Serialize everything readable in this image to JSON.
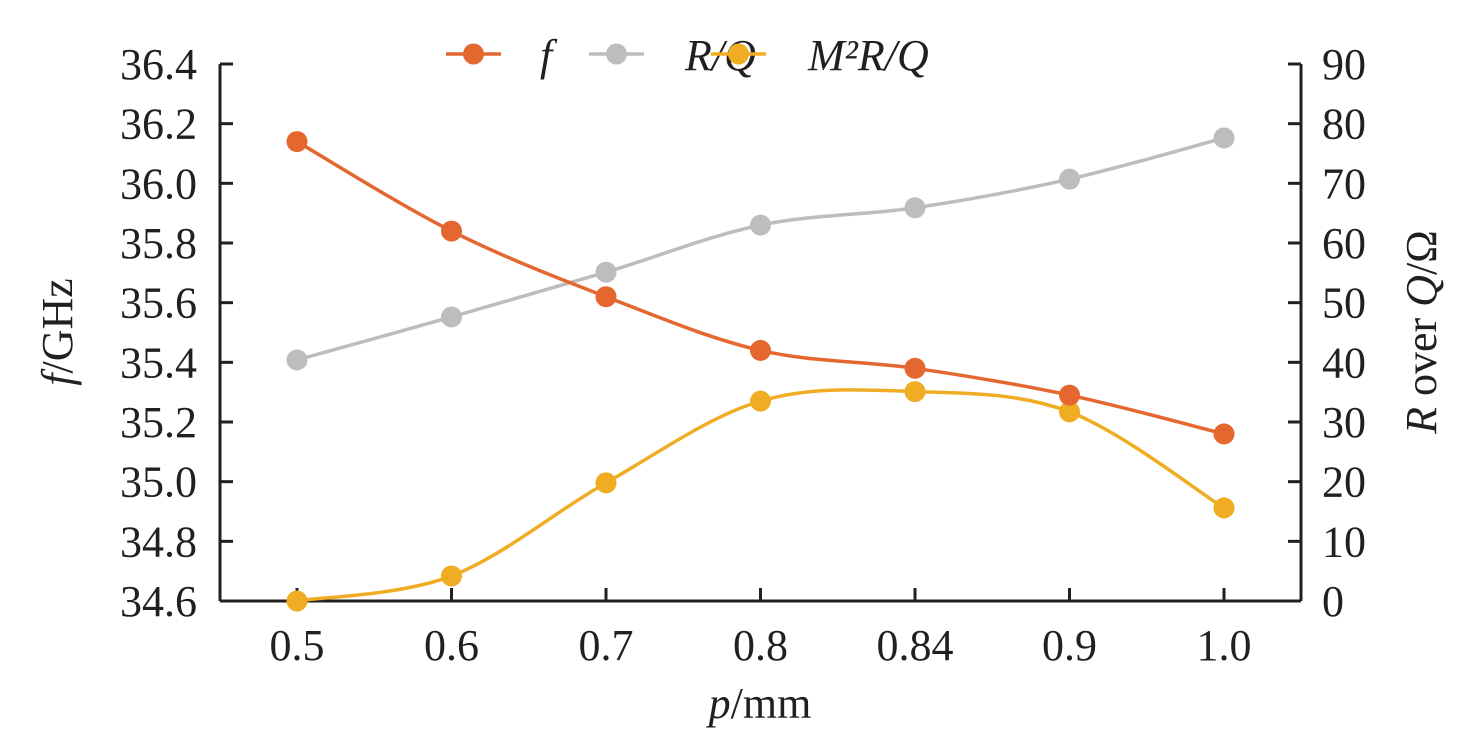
{
  "chart_data": {
    "type": "line",
    "title": "",
    "categories": [
      "0.5",
      "0.6",
      "0.7",
      "0.8",
      "0.84",
      "0.9",
      "1.0"
    ],
    "xlabel": {
      "italic": "p",
      "rest": "/mm"
    },
    "ylabel_left": {
      "italic": "f",
      "rest": "/GHz"
    },
    "ylabel_right": {
      "italic_r": "R",
      "middle": " over ",
      "italic_q": "Q",
      "rest": "/Ω"
    },
    "ylim_left": [
      34.6,
      36.4
    ],
    "yticks_left": [
      "34.6",
      "34.8",
      "35.0",
      "35.2",
      "35.4",
      "35.6",
      "35.8",
      "36.0",
      "36.2",
      "36.4"
    ],
    "ylim_right": [
      0,
      90
    ],
    "yticks_right": [
      "0",
      "10",
      "20",
      "30",
      "40",
      "50",
      "60",
      "70",
      "80",
      "90"
    ],
    "grid": false,
    "legend_position": "top-center",
    "smooth": true,
    "series": [
      {
        "name": "f",
        "legend_label": "f",
        "axis": "left",
        "color": "#e3672f",
        "values": [
          36.14,
          35.84,
          35.62,
          35.44,
          35.38,
          35.29,
          35.16
        ]
      },
      {
        "name": "R/Q",
        "legend_label": "R/Q",
        "axis": "right",
        "color": "#bdbdbd",
        "values": [
          40.4,
          47.6,
          55.1,
          63.0,
          65.9,
          70.7,
          77.6
        ]
      },
      {
        "name": "M²R/Q",
        "legend_label": "M²R/Q",
        "axis": "right",
        "color": "#f0ad24",
        "values": [
          0.0,
          4.2,
          19.8,
          33.5,
          35.1,
          31.7,
          15.6
        ]
      }
    ]
  }
}
